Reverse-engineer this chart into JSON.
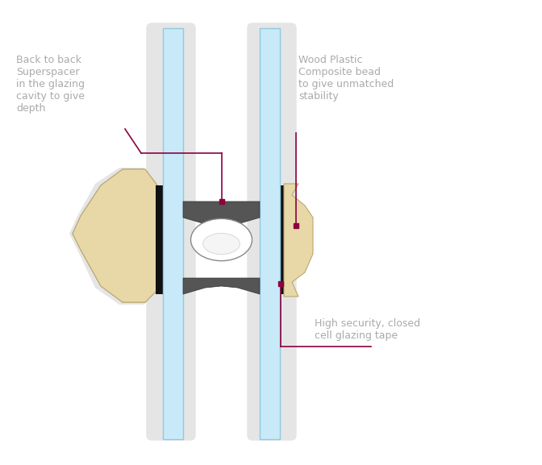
{
  "bg_color": "#ffffff",
  "frame_bg": "#e5e5e5",
  "glass_color": "#c8eaf8",
  "glass_edge_color": "#90c8e0",
  "wood_color": "#e8d8a8",
  "wood_edge_color": "#bba870",
  "spacer_color": "#555555",
  "spacer_edge_color": "#333333",
  "black_seal_color": "#111111",
  "tape_dot_color": "#8b0040",
  "annotation_color": "#aaaaaa",
  "annotation_line_color": "#8b0040",
  "label1": "Back to back\nSuperspacer\nin the glazing\ncavity to give\ndepth",
  "label2": "Wood Plastic\nComposite bead\nto give unmatched\nstability",
  "label3": "High security, closed\ncell glazing tape",
  "figw": 6.72,
  "figh": 5.77,
  "dpi": 100
}
